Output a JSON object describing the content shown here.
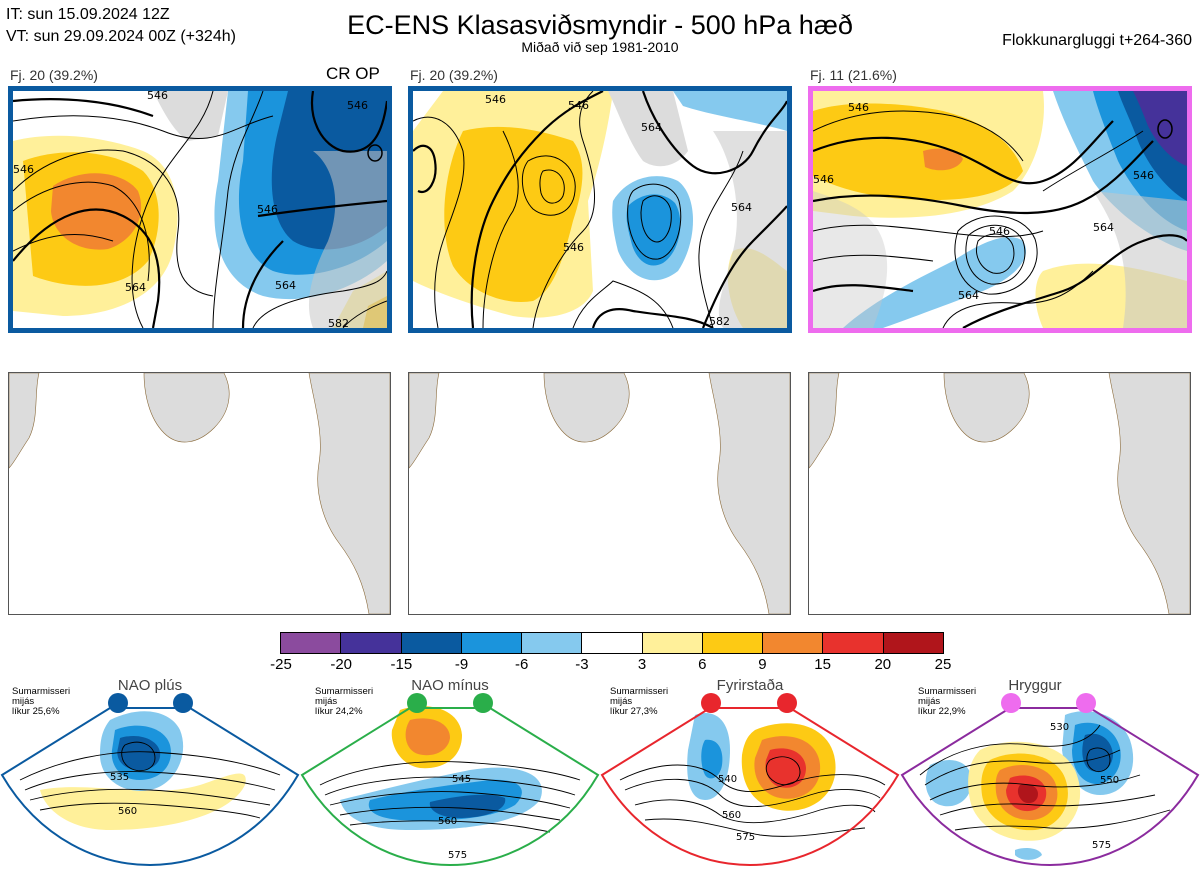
{
  "header": {
    "it_line": "IT: sun 15.09.2024 12Z",
    "vt_line": "VT: sun 29.09.2024 00Z  (+324h)",
    "title": "EC-ENS Klasasviðsmyndir - 500 hPa hæð",
    "subtitle": "Miðað við sep 1981-2010",
    "window": "Flokkunargluggi t+264-360"
  },
  "clusters": [
    {
      "label": "Fj. 20 (39.2%)",
      "tag": "CR OP",
      "border_color": "#0a5aa0"
    },
    {
      "label": "Fj. 20 (39.2%)",
      "tag": "",
      "border_color": "#0a5aa0"
    },
    {
      "label": "Fj. 11 (21.6%)",
      "tag": "",
      "border_color": "#ee6cee"
    }
  ],
  "contour_labels": {
    "p1": [
      "546",
      "546",
      "564",
      "546",
      "564",
      "582",
      "546"
    ],
    "p2": [
      "546",
      "546",
      "564",
      "546",
      "564",
      "582"
    ],
    "p3": [
      "546",
      "546",
      "546",
      "564",
      "564",
      "546"
    ]
  },
  "chart_data": {
    "type": "heatmap",
    "colorbar": {
      "ticks": [
        "-25",
        "-20",
        "-15",
        "-9",
        "-6",
        "-3",
        "3",
        "6",
        "9",
        "15",
        "20",
        "25"
      ],
      "colors": [
        "#8b4b9e",
        "#45329a",
        "#0a5aa0",
        "#1b94dc",
        "#85c9ee",
        "#ffffff",
        "#fff09a",
        "#fdca14",
        "#f2872f",
        "#e8322d",
        "#b0151b"
      ]
    }
  },
  "regimes": [
    {
      "name": "NAO plús",
      "note": [
        "Sumarmisseri",
        "mijás",
        "líkur 25,6%"
      ],
      "color": "#0a5aa0",
      "labels": [
        "535",
        "560"
      ]
    },
    {
      "name": "NAO mínus",
      "note": [
        "Sumarmisseri",
        "mijás",
        "líkur 24,2%"
      ],
      "color": "#2aae4a",
      "labels": [
        "545",
        "560",
        "575"
      ]
    },
    {
      "name": "Fyrirstaða",
      "note": [
        "Sumarmisseri",
        "mijás",
        "líkur 27,3%"
      ],
      "color": "#e8262d",
      "labels": [
        "540",
        "560",
        "575"
      ]
    },
    {
      "name": "Hryggur",
      "note": [
        "Sumarmisseri",
        "mijás",
        "líkur 22,9%"
      ],
      "color": "#ee6cee",
      "labels": [
        "530",
        "550",
        "575"
      ]
    }
  ]
}
